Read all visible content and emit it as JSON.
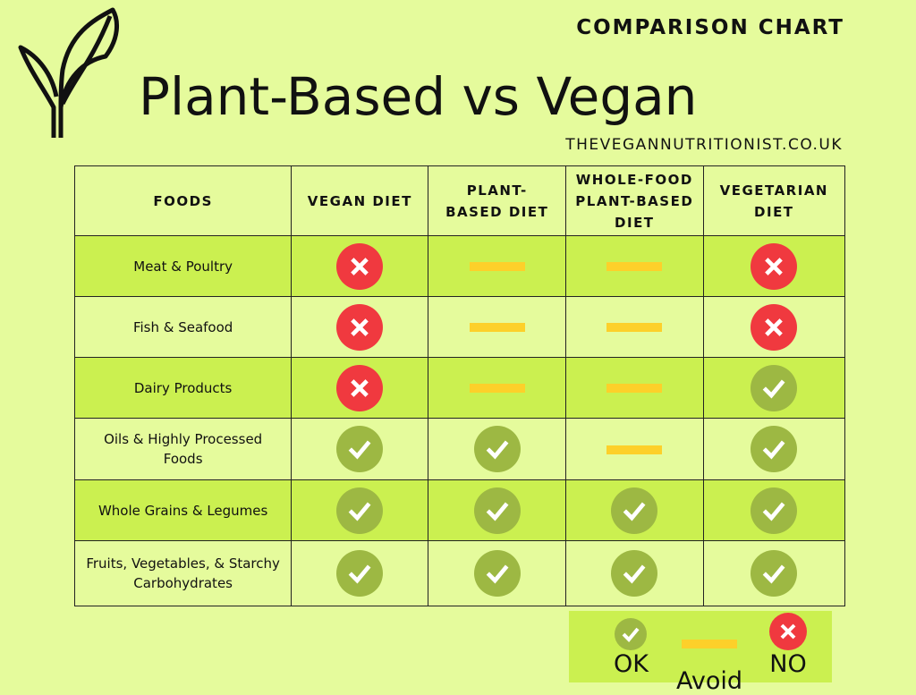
{
  "header": {
    "kicker": "COMPARISON CHART",
    "title": "Plant-Based vs Vegan",
    "site": "THEVEGANNUTRITIONIST.CO.UK"
  },
  "colors": {
    "background": "#e5fb9c",
    "row_highlight": "#cbf050",
    "ok": "#9db843",
    "avoid": "#fdd02a",
    "no": "#f0393f"
  },
  "table": {
    "headers": [
      "FOODS",
      "VEGAN DIET",
      "PLANT-BASED DIET",
      "WHOLE-FOOD PLANT-BASED DIET",
      "VEGETARIAN DIET"
    ],
    "rows": [
      {
        "food": "Meat & Poultry",
        "values": [
          "no",
          "avoid",
          "avoid",
          "no"
        ]
      },
      {
        "food": "Fish & Seafood",
        "values": [
          "no",
          "avoid",
          "avoid",
          "no"
        ]
      },
      {
        "food": "Dairy Products",
        "values": [
          "no",
          "avoid",
          "avoid",
          "ok"
        ]
      },
      {
        "food": "Oils & Highly Processed Foods",
        "values": [
          "ok",
          "ok",
          "avoid",
          "ok"
        ]
      },
      {
        "food": "Whole Grains & Legumes",
        "values": [
          "ok",
          "ok",
          "ok",
          "ok"
        ]
      },
      {
        "food": "Fruits, Vegetables, & Starchy Carbohydrates",
        "values": [
          "ok",
          "ok",
          "ok",
          "ok"
        ]
      }
    ]
  },
  "legend": {
    "ok": "OK",
    "avoid": "Avoid",
    "no": "NO"
  }
}
